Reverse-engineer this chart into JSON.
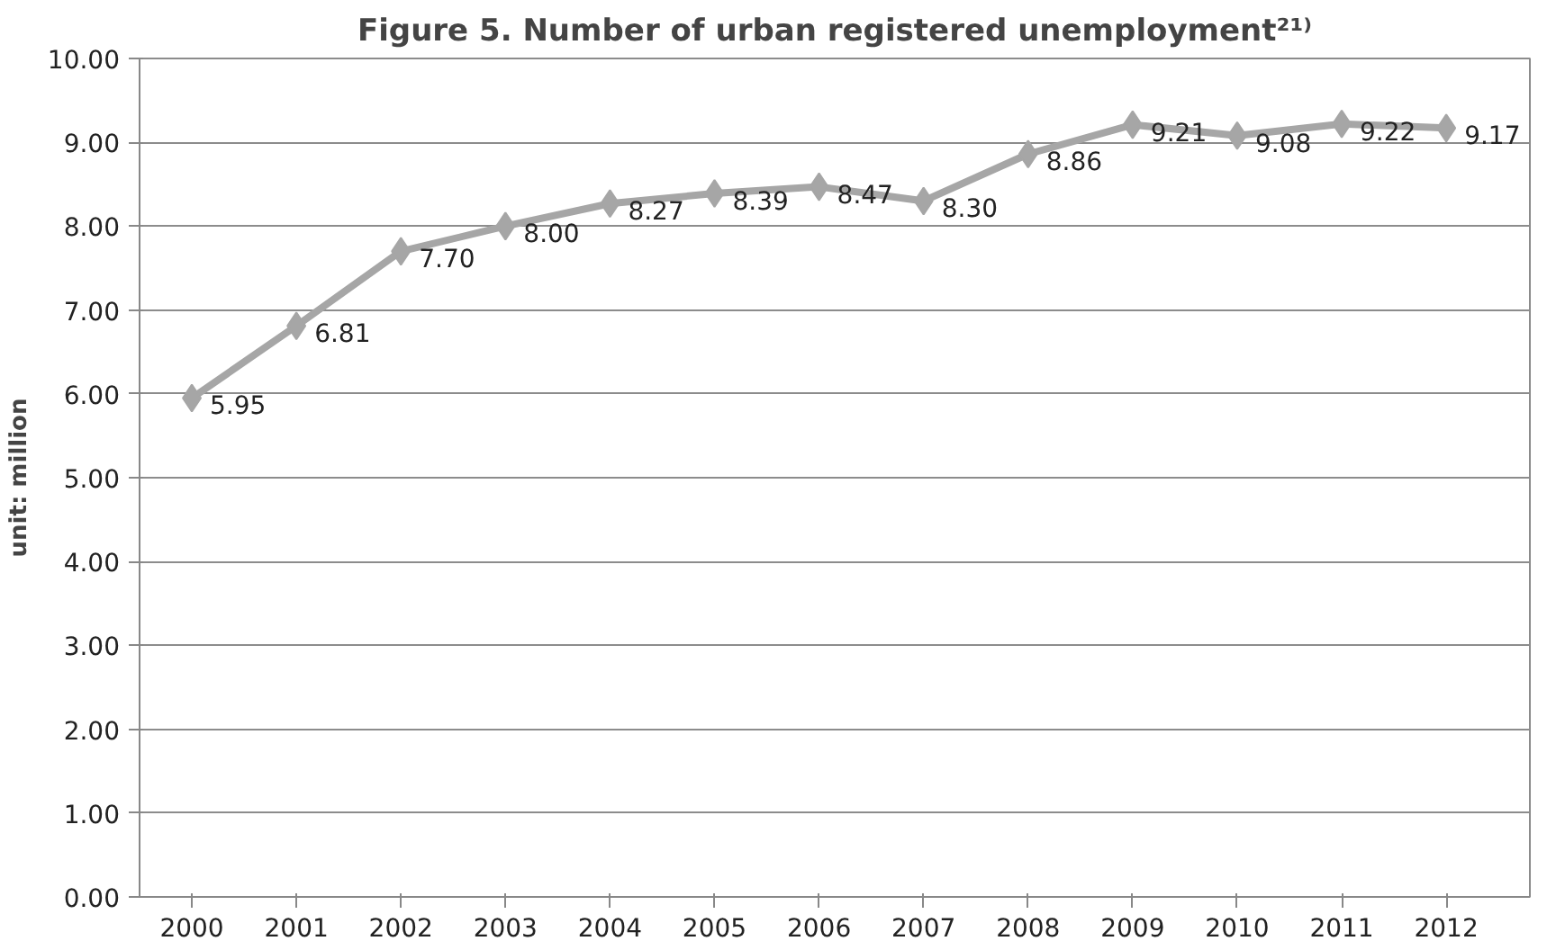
{
  "chart_data": {
    "type": "line",
    "title": "Figure 5. Number of urban registered unemployment²¹⁾",
    "ylabel": "unit: million",
    "categories": [
      "2000",
      "2001",
      "2002",
      "2003",
      "2004",
      "2005",
      "2006",
      "2007",
      "2008",
      "2009",
      "2010",
      "2011",
      "2012"
    ],
    "series": [
      {
        "color": "#a6a6a6",
        "values": [
          5.95,
          6.81,
          7.7,
          8.0,
          8.27,
          8.39,
          8.47,
          8.3,
          8.86,
          9.21,
          9.08,
          9.22,
          9.17
        ]
      }
    ],
    "value_labels": [
      "5.95",
      "6.81",
      "7.70",
      "8.00",
      "8.27",
      "8.39",
      "8.47",
      "8.30",
      "8.86",
      "9.21",
      "9.08",
      "9.22",
      "9.17"
    ],
    "ylim": [
      0,
      10
    ],
    "yticks": [
      {
        "value": 0,
        "label": "0.00"
      },
      {
        "value": 1,
        "label": "1.00"
      },
      {
        "value": 2,
        "label": "2.00"
      },
      {
        "value": 3,
        "label": "3.00"
      },
      {
        "value": 4,
        "label": "4.00"
      },
      {
        "value": 5,
        "label": "5.00"
      },
      {
        "value": 6,
        "label": "6.00"
      },
      {
        "value": 7,
        "label": "7.00"
      },
      {
        "value": 8,
        "label": "8.00"
      },
      {
        "value": 9,
        "label": "9.00"
      },
      {
        "value": 10,
        "label": "10.00"
      }
    ],
    "grid": "y",
    "marker": "diamond",
    "line_style": "solid"
  }
}
